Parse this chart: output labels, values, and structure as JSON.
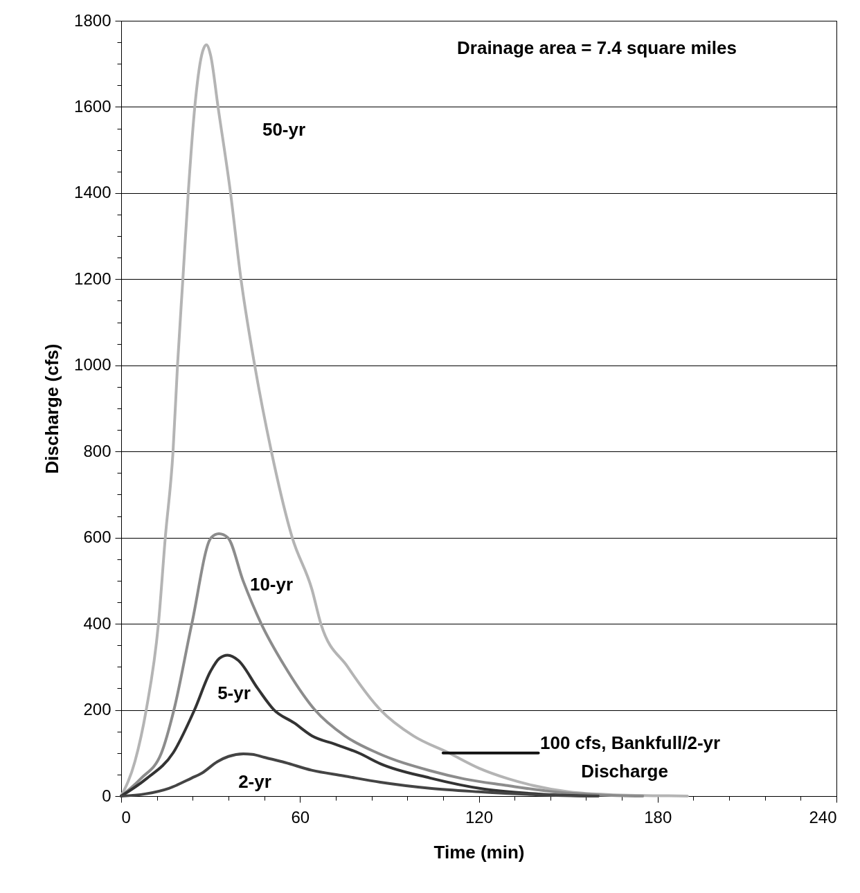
{
  "chart_data": {
    "type": "line",
    "xlabel": "Time (min)",
    "ylabel": "Discharge (cfs)",
    "annotations": [
      "Drainage area = 7.4 square miles"
    ],
    "xlim": [
      0,
      240
    ],
    "ylim": [
      0,
      1800
    ],
    "xticks": [
      0,
      {
        "value": 12,
        "label": null
      },
      {
        "value": 24,
        "label": null
      },
      {
        "value": 36,
        "label": null
      },
      {
        "value": 48,
        "label": null
      },
      60,
      {
        "value": 72,
        "label": null
      },
      {
        "value": 84,
        "label": null
      },
      {
        "value": 96,
        "label": null
      },
      {
        "value": 108,
        "label": null
      },
      120,
      {
        "value": 132,
        "label": null
      },
      {
        "value": 144,
        "label": null
      },
      {
        "value": 156,
        "label": null
      },
      {
        "value": 168,
        "label": null
      },
      180,
      {
        "value": 192,
        "label": null
      },
      {
        "value": 204,
        "label": null
      },
      {
        "value": 216,
        "label": null
      },
      {
        "value": 228,
        "label": null
      },
      240
    ],
    "yticks": [
      0,
      {
        "value": 50,
        "label": null
      },
      {
        "value": 100,
        "label": null
      },
      {
        "value": 150,
        "label": null
      },
      200,
      {
        "value": 250,
        "label": null
      },
      {
        "value": 300,
        "label": null
      },
      {
        "value": 350,
        "label": null
      },
      400,
      {
        "value": 450,
        "label": null
      },
      {
        "value": 500,
        "label": null
      },
      {
        "value": 550,
        "label": null
      },
      600,
      {
        "value": 650,
        "label": null
      },
      {
        "value": 700,
        "label": null
      },
      {
        "value": 750,
        "label": null
      },
      800,
      {
        "value": 850,
        "label": null
      },
      {
        "value": 900,
        "label": null
      },
      {
        "value": 950,
        "label": null
      },
      1000,
      {
        "value": 1050,
        "label": null
      },
      {
        "value": 1100,
        "label": null
      },
      {
        "value": 1150,
        "label": null
      },
      1200,
      {
        "value": 1250,
        "label": null
      },
      {
        "value": 1300,
        "label": null
      },
      {
        "value": 1350,
        "label": null
      },
      1400,
      {
        "value": 1450,
        "label": null
      },
      {
        "value": 1500,
        "label": null
      },
      {
        "value": 1550,
        "label": null
      },
      1600,
      {
        "value": 1650,
        "label": null
      },
      {
        "value": 1700,
        "label": null
      },
      {
        "value": 1750,
        "label": null
      },
      1800
    ],
    "grid": "y",
    "legend": false,
    "marker": "none",
    "line_style": "solid",
    "series": [
      {
        "name": "50-yr",
        "color": "#b4b4b4",
        "x": [
          0,
          4.6,
          8.4,
          12.5,
          14.8,
          17.4,
          18.9,
          20.7,
          22.5,
          24.7,
          27,
          28.6,
          30,
          32.5,
          36.7,
          40.2,
          44.8,
          50.4,
          57.4,
          64,
          67,
          76,
          87,
          98,
          110,
          120,
          130,
          138,
          150,
          165,
          180,
          190
        ],
        "values": [
          0,
          80,
          200,
          400,
          600,
          800,
          1000,
          1200,
          1400,
          1600,
          1720,
          1744,
          1720,
          1600,
          1400,
          1200,
          1000,
          800,
          600,
          480,
          400,
          300,
          200,
          140,
          100,
          65,
          40,
          25,
          10,
          3,
          1,
          0
        ]
      },
      {
        "name": "10-yr",
        "color": "#8c8c8c",
        "x": [
          0,
          6.5,
          13.5,
          17.7,
          23.7,
          30.2,
          32.8,
          35.8,
          40.9,
          47,
          55,
          65,
          75,
          86,
          103.6,
          115,
          129,
          145,
          160,
          175
        ],
        "values": [
          0,
          40,
          100,
          200,
          400,
          600,
          609,
          600,
          500,
          400,
          300,
          200,
          140,
          100,
          59,
          40,
          25,
          10,
          3,
          0
        ]
      },
      {
        "name": "5-yr",
        "color": "#333333",
        "x": [
          0,
          8.4,
          17.4,
          24.6,
          30,
          33,
          35.7,
          39.3,
          45.8,
          51.3,
          58,
          64,
          72,
          79.7,
          87,
          103.6,
          122,
          140,
          160
        ],
        "values": [
          0,
          40,
          100,
          200,
          290,
          320,
          327,
          315,
          250,
          200,
          170,
          140,
          120,
          100,
          75,
          42,
          16,
          5,
          0
        ]
      },
      {
        "name": "2-yr",
        "color": "#444444",
        "x": [
          0,
          8,
          16,
          23.7,
          27,
          32.3,
          36,
          41,
          44,
          48,
          55,
          63.9,
          74.6,
          87,
          103.6,
          120,
          140,
          160
        ],
        "values": [
          0,
          5,
          18,
          42,
          53,
          80,
          92,
          98,
          97,
          90,
          78,
          60,
          47,
          32,
          18,
          10,
          3,
          0
        ]
      },
      {
        "name": "100 cfs, Bankfull/2-yr Discharge",
        "color": "#111111",
        "x": [
          108,
          140
        ],
        "values": [
          100,
          100
        ]
      }
    ]
  }
}
